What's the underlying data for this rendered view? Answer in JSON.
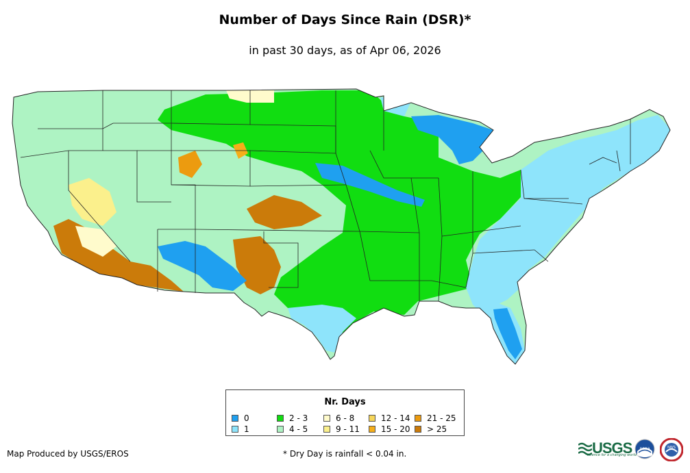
{
  "title": "Number of Days Since Rain (DSR)*",
  "subtitle": "in past 30 days, as of Apr 06, 2026",
  "legend": {
    "title": "Nr. Days",
    "items": [
      {
        "label": "0",
        "color": "#1fa0f0"
      },
      {
        "label": "1",
        "color": "#8ee4fb"
      },
      {
        "label": "2 - 3",
        "color": "#11dd11"
      },
      {
        "label": "4 - 5",
        "color": "#aef3c3"
      },
      {
        "label": "6 - 8",
        "color": "#fffbcc"
      },
      {
        "label": "9 - 11",
        "color": "#fbf08c"
      },
      {
        "label": "12 - 14",
        "color": "#f6d65a"
      },
      {
        "label": "15 - 20",
        "color": "#f5ae1a"
      },
      {
        "label": "21 - 25",
        "color": "#ec9b0f"
      },
      {
        "label": "> 25",
        "color": "#cb7b0a"
      }
    ]
  },
  "footer": {
    "credit": "Map Produced by USGS/EROS",
    "note": "* Dry Day is rainfall < 0.04 in."
  },
  "logos": {
    "usgs": "USGS",
    "usgs_tagline": "science for a changing world",
    "noaa": "noaa",
    "nws": "NWS"
  },
  "colors": {
    "c0": "#1fa0f0",
    "c1": "#8ee4fb",
    "c23": "#11dd11",
    "c45": "#aef3c3",
    "c68": "#fffbcc",
    "c911": "#fbf08c",
    "c1214": "#f6d65a",
    "c1520": "#f5ae1a",
    "c2125": "#ec9b0f",
    "c25": "#cb7b0a",
    "border": "#222222"
  }
}
